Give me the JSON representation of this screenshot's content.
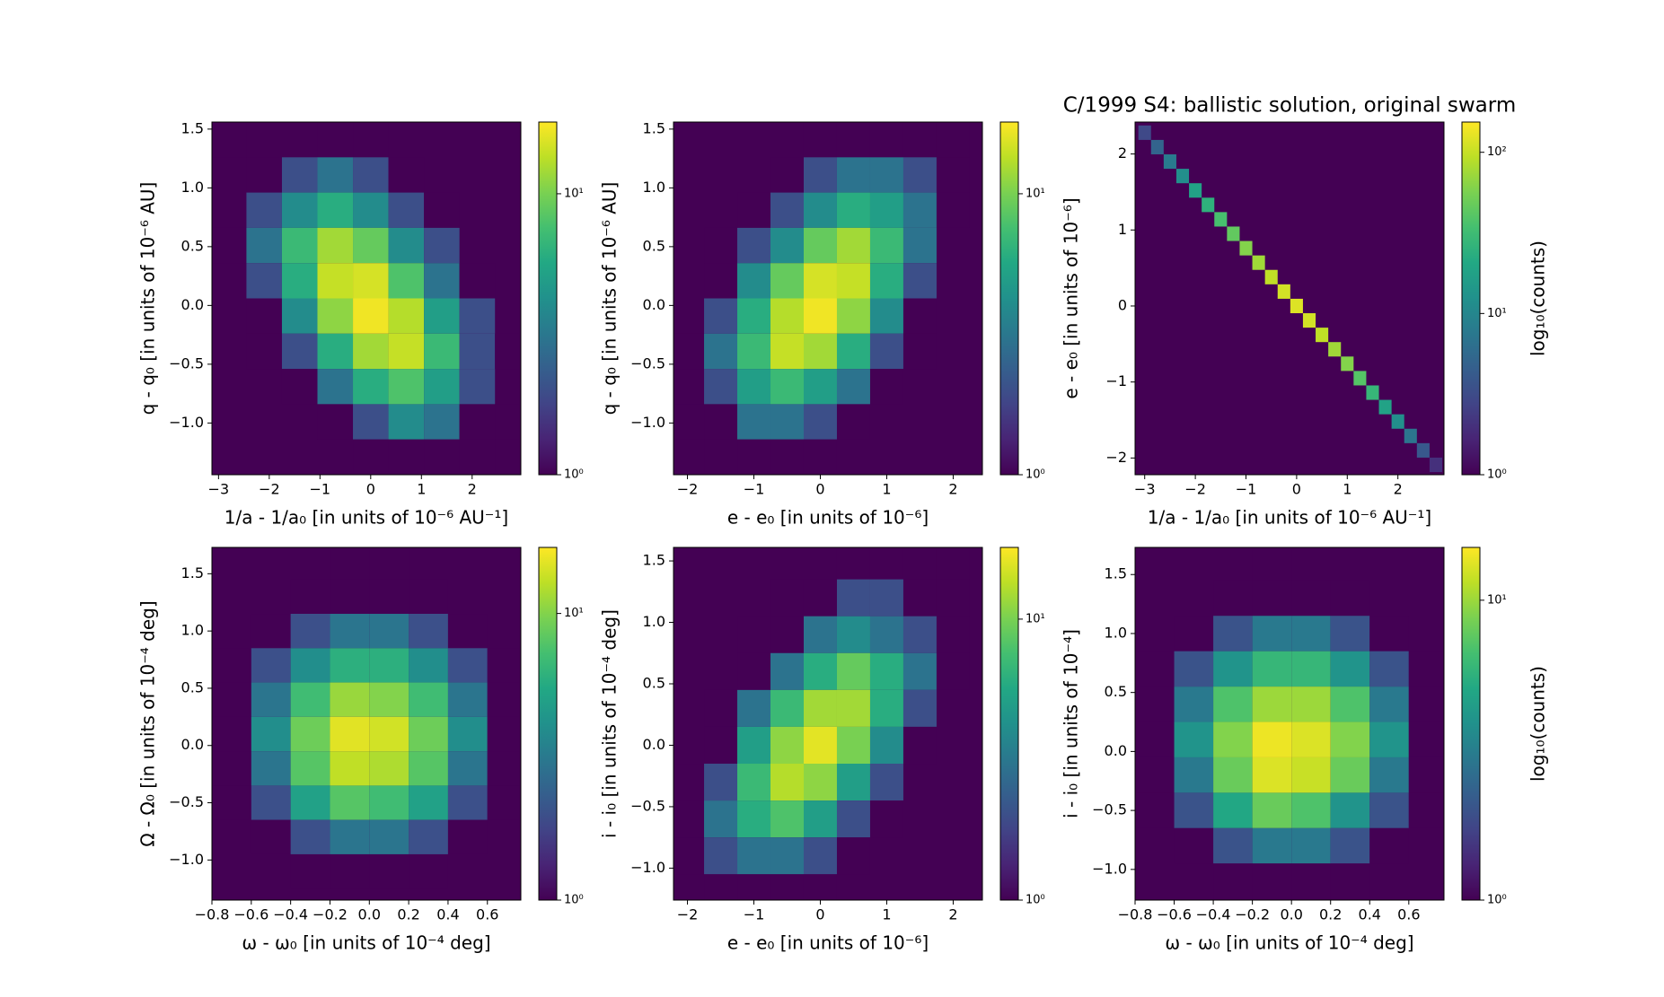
{
  "chart_data": [
    {
      "type": "hexbin",
      "colormap": "viridis",
      "facecolor": "#440154",
      "xlabel": "1/a - 1/a₀ [in units of 10⁻⁶ AU⁻¹]",
      "ylabel": "q - q₀ [in units of 10⁻⁶ AU]",
      "xlim": [
        -3.13,
        2.96
      ],
      "ylim": [
        -1.44,
        1.56
      ],
      "xticks": [
        {
          "value": -3,
          "label": "−3"
        },
        {
          "value": -2,
          "label": "−2"
        },
        {
          "value": -1,
          "label": "−1"
        },
        0,
        1,
        2
      ],
      "yticks": [
        {
          "value": -1,
          "label": "−1.0"
        },
        {
          "value": -0.5,
          "label": "−0.5"
        },
        {
          "value": 0,
          "label": "0.0"
        },
        0.5,
        {
          "value": 1,
          "label": "1.0"
        },
        1.5
      ],
      "colorbar": {
        "scale": "log",
        "lim": [
          1,
          18
        ],
        "ticks": [
          {
            "value": 1,
            "label": "10⁰"
          },
          {
            "value": 10,
            "label": "10¹"
          }
        ]
      },
      "x_centers": [
        -2.8,
        -2.1,
        -1.4,
        -0.7,
        0,
        0.7,
        1.4,
        2.1,
        2.8
      ],
      "y_centers": [
        1.41,
        1.11,
        0.81,
        0.51,
        0.21,
        -0.09,
        -0.39,
        -0.69,
        -0.99,
        -1.29
      ],
      "counts": [
        [
          1,
          0,
          0,
          1,
          1,
          0,
          0,
          0,
          0
        ],
        [
          0,
          1,
          2,
          3,
          2,
          1,
          0,
          0,
          0
        ],
        [
          0,
          2,
          4,
          6,
          4,
          2,
          1,
          0,
          0
        ],
        [
          1,
          3,
          7,
          12,
          9,
          4,
          2,
          0,
          0
        ],
        [
          0,
          2,
          6,
          14,
          15,
          8,
          3,
          1,
          0
        ],
        [
          0,
          1,
          4,
          11,
          17,
          13,
          5,
          2,
          0
        ],
        [
          0,
          1,
          2,
          6,
          12,
          14,
          7,
          2,
          1
        ],
        [
          0,
          0,
          1,
          3,
          6,
          8,
          5,
          2,
          0
        ],
        [
          0,
          0,
          0,
          1,
          2,
          4,
          3,
          1,
          1
        ],
        [
          0,
          0,
          0,
          0,
          1,
          1,
          1,
          0,
          1
        ]
      ]
    },
    {
      "type": "hexbin",
      "colormap": "viridis",
      "facecolor": "#440154",
      "xlabel": "e - e₀ [in units of 10⁻⁶]",
      "ylabel": "q - q₀ [in units of 10⁻⁶ AU]",
      "xlim": [
        -2.21,
        2.44
      ],
      "ylim": [
        -1.44,
        1.56
      ],
      "xticks": [
        {
          "value": -2,
          "label": "−2"
        },
        {
          "value": -1,
          "label": "−1"
        },
        0,
        1,
        2
      ],
      "yticks": [
        {
          "value": -1,
          "label": "−1.0"
        },
        {
          "value": -0.5,
          "label": "−0.5"
        },
        {
          "value": 0,
          "label": "0.0"
        },
        0.5,
        {
          "value": 1,
          "label": "1.0"
        },
        1.5
      ],
      "colorbar": {
        "scale": "log",
        "lim": [
          1,
          18
        ],
        "ticks": [
          {
            "value": 1,
            "label": "10⁰"
          },
          {
            "value": 10,
            "label": "10¹"
          }
        ]
      },
      "x_centers": [
        -2.0,
        -1.5,
        -1.0,
        -0.5,
        0,
        0.5,
        1.0,
        1.5,
        2.0
      ],
      "y_centers": [
        1.41,
        1.11,
        0.81,
        0.51,
        0.21,
        -0.09,
        -0.39,
        -0.69,
        -0.99,
        -1.29
      ],
      "counts": [
        [
          0,
          0,
          0,
          0,
          1,
          1,
          1,
          1,
          1
        ],
        [
          0,
          0,
          0,
          1,
          2,
          3,
          3,
          2,
          1
        ],
        [
          0,
          0,
          1,
          2,
          4,
          6,
          5,
          3,
          1
        ],
        [
          0,
          1,
          2,
          4,
          9,
          12,
          7,
          3,
          0
        ],
        [
          0,
          1,
          4,
          9,
          15,
          14,
          6,
          2,
          0
        ],
        [
          1,
          2,
          6,
          13,
          17,
          11,
          4,
          1,
          0
        ],
        [
          1,
          3,
          7,
          14,
          12,
          6,
          2,
          1,
          0
        ],
        [
          1,
          2,
          5,
          7,
          5,
          3,
          1,
          0,
          0
        ],
        [
          1,
          1,
          3,
          3,
          2,
          1,
          0,
          0,
          0
        ],
        [
          0,
          1,
          1,
          1,
          1,
          0,
          0,
          0,
          0
        ]
      ]
    },
    {
      "type": "hexbin",
      "colormap": "viridis",
      "facecolor": "#440154",
      "title": "C/1999 S4:  ballistic solution, original swarm",
      "xlabel": "1/a - 1/a₀ [in units of 10⁻⁶ AU⁻¹]",
      "ylabel": "e - e₀ [in units of 10⁻⁶]",
      "xlim": [
        -3.19,
        2.91
      ],
      "ylim": [
        -2.22,
        2.42
      ],
      "xticks": [
        {
          "value": -3,
          "label": "−3"
        },
        {
          "value": -2,
          "label": "−2"
        },
        {
          "value": -1,
          "label": "−1"
        },
        0,
        1,
        2
      ],
      "yticks": [
        {
          "value": -2,
          "label": "−2"
        },
        {
          "value": -1,
          "label": "−1"
        },
        0,
        1,
        2
      ],
      "colorbar": {
        "scale": "log",
        "lim": [
          1,
          154
        ],
        "label": "log₁₀(counts)",
        "ticks": [
          {
            "value": 1,
            "label": "10⁰"
          },
          {
            "value": 10,
            "label": "10¹"
          },
          {
            "value": 100,
            "label": "10²"
          }
        ]
      },
      "x": [
        -3.0,
        -2.75,
        -2.5,
        -2.25,
        -2.0,
        -1.75,
        -1.5,
        -1.25,
        -1.0,
        -0.75,
        -0.5,
        -0.25,
        0,
        0.25,
        0.5,
        0.75,
        1.0,
        1.25,
        1.5,
        1.75,
        2.0,
        2.25,
        2.5,
        2.75
      ],
      "y": [
        2.28,
        2.09,
        1.9,
        1.71,
        1.52,
        1.33,
        1.14,
        0.95,
        0.76,
        0.57,
        0.38,
        0.19,
        0,
        -0.19,
        -0.38,
        -0.57,
        -0.76,
        -0.95,
        -1.14,
        -1.33,
        -1.52,
        -1.71,
        -1.9,
        -2.09
      ],
      "counts": [
        3,
        5,
        8,
        12,
        18,
        25,
        35,
        45,
        60,
        75,
        95,
        110,
        120,
        110,
        95,
        75,
        60,
        40,
        28,
        18,
        12,
        7,
        4,
        2
      ]
    },
    {
      "type": "hexbin",
      "colormap": "viridis",
      "facecolor": "#440154",
      "xlabel": "ω - ω₀ [in units of 10⁻⁴ deg]",
      "ylabel": "Ω - Ω₀ [in units of 10⁻⁴ deg]",
      "xlim": [
        -0.8,
        0.77
      ],
      "ylim": [
        -1.35,
        1.73
      ],
      "xticks": [
        {
          "value": -0.8,
          "label": "−0.8"
        },
        {
          "value": -0.6,
          "label": "−0.6"
        },
        {
          "value": -0.4,
          "label": "−0.4"
        },
        {
          "value": -0.2,
          "label": "−0.2"
        },
        {
          "value": 0,
          "label": "0.0"
        },
        0.2,
        0.4,
        0.6
      ],
      "yticks": [
        {
          "value": -1,
          "label": "−1.0"
        },
        {
          "value": -0.5,
          "label": "−0.5"
        },
        {
          "value": 0,
          "label": "0.0"
        },
        0.5,
        {
          "value": 1,
          "label": "1.0"
        },
        1.5
      ],
      "colorbar": {
        "scale": "log",
        "lim": [
          1,
          17
        ],
        "ticks": [
          {
            "value": 1,
            "label": "10⁰"
          },
          {
            "value": 10,
            "label": "10¹"
          }
        ]
      },
      "x_centers": [
        -0.7,
        -0.5,
        -0.3,
        -0.1,
        0.1,
        0.3,
        0.5,
        0.7
      ],
      "y_centers": [
        1.6,
        1.3,
        1.0,
        0.7,
        0.4,
        0.1,
        -0.2,
        -0.5,
        -0.8,
        -1.1
      ],
      "counts": [
        [
          0,
          0,
          0,
          1,
          1,
          0,
          0,
          0
        ],
        [
          0,
          0,
          1,
          1,
          1,
          1,
          0,
          0
        ],
        [
          0,
          1,
          2,
          3,
          3,
          2,
          1,
          0
        ],
        [
          1,
          2,
          4,
          6,
          6,
          4,
          2,
          1
        ],
        [
          1,
          3,
          7,
          11,
          10,
          7,
          3,
          1
        ],
        [
          1,
          4,
          9,
          15,
          14,
          9,
          4,
          1
        ],
        [
          1,
          3,
          8,
          13,
          12,
          8,
          3,
          1
        ],
        [
          1,
          2,
          5,
          8,
          7,
          5,
          2,
          1
        ],
        [
          0,
          1,
          2,
          3,
          3,
          2,
          1,
          0
        ],
        [
          0,
          0,
          1,
          1,
          1,
          1,
          0,
          0
        ]
      ]
    },
    {
      "type": "hexbin",
      "colormap": "viridis",
      "facecolor": "#440154",
      "xlabel": "e - e₀ [in units of 10⁻⁶]",
      "ylabel": "i - i₀ [in units of 10⁻⁴ deg]",
      "xlim": [
        -2.21,
        2.44
      ],
      "ylim": [
        -1.26,
        1.61
      ],
      "xticks": [
        {
          "value": -2,
          "label": "−2"
        },
        {
          "value": -1,
          "label": "−1"
        },
        0,
        1,
        2
      ],
      "yticks": [
        {
          "value": -1,
          "label": "−1.0"
        },
        {
          "value": -0.5,
          "label": "−0.5"
        },
        {
          "value": 0,
          "label": "0.0"
        },
        0.5,
        {
          "value": 1,
          "label": "1.0"
        },
        1.5
      ],
      "colorbar": {
        "scale": "log",
        "lim": [
          1,
          18
        ],
        "ticks": [
          {
            "value": 1,
            "label": "10⁰"
          },
          {
            "value": 10,
            "label": "10¹"
          }
        ]
      },
      "x_centers": [
        -2.0,
        -1.5,
        -1.0,
        -0.5,
        0,
        0.5,
        1.0,
        1.5,
        2.0
      ],
      "y_centers": [
        1.5,
        1.2,
        0.9,
        0.6,
        0.3,
        0,
        -0.3,
        -0.6,
        -0.9,
        -1.2
      ],
      "counts": [
        [
          0,
          0,
          0,
          0,
          0,
          1,
          1,
          1,
          1
        ],
        [
          0,
          0,
          0,
          1,
          1,
          2,
          2,
          1,
          1
        ],
        [
          0,
          0,
          1,
          1,
          3,
          4,
          3,
          2,
          1
        ],
        [
          0,
          0,
          1,
          3,
          6,
          9,
          6,
          3,
          1
        ],
        [
          0,
          1,
          3,
          7,
          12,
          12,
          6,
          2,
          0
        ],
        [
          0,
          1,
          5,
          11,
          16,
          10,
          4,
          1,
          0
        ],
        [
          1,
          2,
          7,
          13,
          11,
          5,
          2,
          0,
          0
        ],
        [
          1,
          3,
          6,
          8,
          5,
          2,
          1,
          0,
          0
        ],
        [
          1,
          2,
          3,
          3,
          2,
          1,
          0,
          0,
          0
        ],
        [
          0,
          1,
          1,
          1,
          1,
          0,
          0,
          0,
          0
        ]
      ]
    },
    {
      "type": "hexbin",
      "colormap": "viridis",
      "facecolor": "#440154",
      "xlabel": "ω - ω₀ [in units of 10⁻⁴ deg]",
      "ylabel": "i - i₀ [in units of 10⁻⁴]",
      "xlim": [
        -0.8,
        0.78
      ],
      "ylim": [
        -1.26,
        1.73
      ],
      "xticks": [
        {
          "value": -0.8,
          "label": "−0.8"
        },
        {
          "value": -0.6,
          "label": "−0.6"
        },
        {
          "value": -0.4,
          "label": "−0.4"
        },
        {
          "value": -0.2,
          "label": "−0.2"
        },
        {
          "value": 0,
          "label": "0.0"
        },
        0.2,
        0.4,
        0.6
      ],
      "yticks": [
        {
          "value": -1,
          "label": "−1.0"
        },
        {
          "value": -0.5,
          "label": "−0.5"
        },
        {
          "value": 0,
          "label": "0.0"
        },
        0.5,
        {
          "value": 1,
          "label": "1.0"
        },
        1.5
      ],
      "colorbar": {
        "scale": "log",
        "lim": [
          1,
          15
        ],
        "label": "log₁₀(counts)",
        "ticks": [
          {
            "value": 1,
            "label": "10⁰"
          },
          {
            "value": 10,
            "label": "10¹"
          }
        ]
      },
      "x_centers": [
        -0.7,
        -0.5,
        -0.3,
        -0.1,
        0.1,
        0.3,
        0.5,
        0.7
      ],
      "y_centers": [
        1.6,
        1.3,
        1.0,
        0.7,
        0.4,
        0.1,
        -0.2,
        -0.5,
        -0.8,
        -1.1
      ],
      "counts": [
        [
          0,
          0,
          0,
          1,
          0,
          0,
          0,
          0
        ],
        [
          0,
          0,
          1,
          1,
          1,
          1,
          0,
          0
        ],
        [
          0,
          1,
          2,
          3,
          3,
          2,
          1,
          0
        ],
        [
          1,
          2,
          4,
          6,
          6,
          4,
          2,
          1
        ],
        [
          1,
          3,
          7,
          10,
          10,
          7,
          3,
          1
        ],
        [
          1,
          4,
          9,
          14,
          13,
          9,
          4,
          1
        ],
        [
          1,
          3,
          8,
          13,
          12,
          8,
          3,
          1
        ],
        [
          1,
          2,
          5,
          8,
          7,
          4,
          2,
          1
        ],
        [
          0,
          1,
          2,
          3,
          3,
          2,
          1,
          0
        ],
        [
          0,
          0,
          1,
          1,
          1,
          1,
          0,
          0
        ]
      ]
    }
  ]
}
